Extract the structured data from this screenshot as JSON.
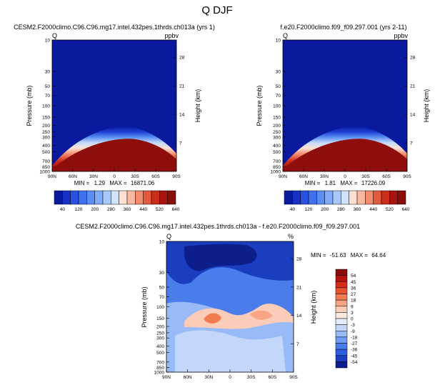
{
  "page_title": "Q DJF",
  "chart_data": [
    {
      "type": "heatmap",
      "title": "CESM2.F2000climo.C96.C96.mg17.intel.432pes.1thrds.ch013a (yrs 1)",
      "variable": "Q",
      "units": "ppbv",
      "ylabel": "Pressure (mb)",
      "ylabel_right": "Height (km)",
      "x_ticks": [
        "90N",
        "60N",
        "30N",
        "0",
        "30S",
        "60S",
        "90S"
      ],
      "y_ticks": [
        "10",
        "30",
        "50",
        "70",
        "100",
        "150",
        "200",
        "250",
        "300",
        "400",
        "500",
        "700",
        "850",
        "1000"
      ],
      "height_ticks": [
        "28",
        "21",
        "14",
        "7"
      ],
      "stats": {
        "min_label": "MIN =",
        "min": "1.29",
        "max_label": "MAX =",
        "max": "16871.06"
      },
      "colorbar_labels": [
        "40",
        "120",
        "200",
        "280",
        "360",
        "440",
        "520",
        "640"
      ]
    },
    {
      "type": "heatmap",
      "title": "f.e20.F2000climo.f09_f09.297.001 (yrs 2-11)",
      "variable": "Q",
      "units": "ppbv",
      "ylabel": "Pressure (mb)",
      "ylabel_right": "Height (km)",
      "x_ticks": [
        "90N",
        "60N",
        "30N",
        "0",
        "30S",
        "60S",
        "90S"
      ],
      "y_ticks": [
        "10",
        "30",
        "50",
        "70",
        "100",
        "150",
        "200",
        "250",
        "300",
        "400",
        "500",
        "700",
        "850",
        "1000"
      ],
      "height_ticks": [
        "28",
        "21",
        "14",
        "7"
      ],
      "stats": {
        "min_label": "MIN =",
        "min": "1.81",
        "max_label": "MAX =",
        "max": "17226.09"
      },
      "colorbar_labels": [
        "40",
        "120",
        "200",
        "280",
        "360",
        "440",
        "520",
        "640"
      ]
    },
    {
      "type": "heatmap",
      "title": "CESM2.F2000climo.C96.C96.mg17.intel.432pes.1thrds.ch013a - f.e20.F2000climo.f09_f09.297.001",
      "variable": "Q",
      "units": "%",
      "ylabel": "Pressure (mb)",
      "ylabel_right": "Height (km)",
      "x_ticks": [
        "90N",
        "60N",
        "30N",
        "0",
        "30S",
        "60S",
        "90S"
      ],
      "y_ticks": [
        "10",
        "30",
        "50",
        "70",
        "100",
        "150",
        "200",
        "250",
        "300",
        "400",
        "500",
        "700",
        "850",
        "1000"
      ],
      "height_ticks": [
        "28",
        "21",
        "14",
        "7"
      ],
      "stats": {
        "min_label": "MIN =",
        "min": "-51.63",
        "max_label": "MAX =",
        "max": "64.64"
      },
      "colorbar_labels": [
        "54",
        "45",
        "36",
        "27",
        "18",
        "9",
        "3",
        "0",
        "-3",
        "-9",
        "-18",
        "-27",
        "-36",
        "-45",
        "-54"
      ]
    }
  ],
  "colors": {
    "abs_scale": [
      "#0a1a9e",
      "#1632c8",
      "#2a52e0",
      "#3f70ee",
      "#5b8ef5",
      "#80abf8",
      "#a8c8fb",
      "#d2e2fd",
      "#fde0d2",
      "#fab8a0",
      "#f28c6c",
      "#e45a3c",
      "#cc2c1a",
      "#a8140e",
      "#8b0d0a"
    ],
    "diff_scale": [
      "#8b0d0a",
      "#b3140e",
      "#d62c18",
      "#e9542e",
      "#f27c52",
      "#f8a586",
      "#fbcdb9",
      "#fbe9e0",
      "#e3ecfb",
      "#c2d7fa",
      "#98baf7",
      "#6f9bf2",
      "#4a7deb",
      "#2c5fdf",
      "#1a3ebf",
      "#0c1d8c"
    ]
  }
}
